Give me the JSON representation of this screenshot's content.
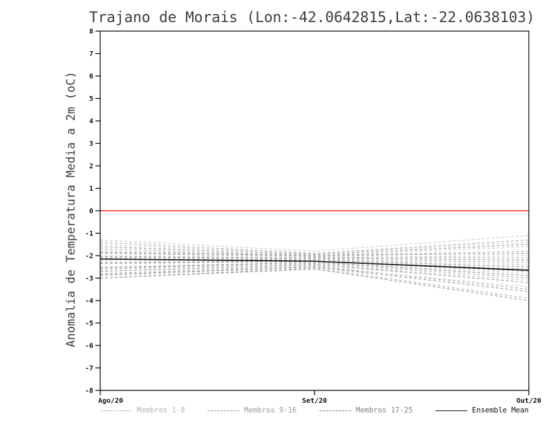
{
  "chart_data": {
    "type": "line",
    "title": "Trajano de Morais (Lon:-42.0642815,Lat:-22.0638103)",
    "ylabel": "Anomalia de Temperatura Media a 2m (oC)",
    "xlabel": "",
    "x_labels": [
      "Ago/20",
      "Set/20",
      "Out/20"
    ],
    "ylim": [
      -8,
      8
    ],
    "y_tick_step": 1,
    "grid": false,
    "zero_line_color": "#ff2a2a",
    "axis_color": "#000000",
    "groups": [
      {
        "name": "Membros 1-8",
        "color": "#c8c8c8",
        "dash": true,
        "members": [
          [
            -1.3,
            -1.8,
            -1.1
          ],
          [
            -1.5,
            -1.9,
            -1.4
          ],
          [
            -1.8,
            -2.0,
            -1.6
          ],
          [
            -2.0,
            -2.1,
            -2.0
          ],
          [
            -2.2,
            -2.2,
            -2.4
          ],
          [
            -2.5,
            -2.3,
            -2.8
          ],
          [
            -2.7,
            -2.4,
            -3.1
          ],
          [
            -2.9,
            -2.5,
            -3.4
          ]
        ]
      },
      {
        "name": "Membros 9-16",
        "color": "#ababab",
        "dash": true,
        "members": [
          [
            -1.4,
            -1.9,
            -1.3
          ],
          [
            -1.7,
            -2.0,
            -1.8
          ],
          [
            -1.9,
            -2.05,
            -2.1
          ],
          [
            -2.1,
            -2.15,
            -2.3
          ],
          [
            -2.3,
            -2.25,
            -2.6
          ],
          [
            -2.6,
            -2.35,
            -3.0
          ],
          [
            -2.8,
            -2.45,
            -3.5
          ],
          [
            -3.0,
            -2.55,
            -3.9
          ]
        ]
      },
      {
        "name": "Membros 17-25",
        "color": "#909090",
        "dash": true,
        "members": [
          [
            -1.6,
            -1.95,
            -1.5
          ],
          [
            -1.85,
            -2.0,
            -1.9
          ],
          [
            -2.05,
            -2.1,
            -2.2
          ],
          [
            -2.15,
            -2.2,
            -2.5
          ],
          [
            -2.35,
            -2.25,
            -2.7
          ],
          [
            -2.55,
            -2.3,
            -2.9
          ],
          [
            -2.7,
            -2.4,
            -3.2
          ],
          [
            -2.85,
            -2.5,
            -3.6
          ],
          [
            -3.0,
            -2.6,
            -4.0
          ]
        ]
      }
    ],
    "mean": {
      "name": "Ensemble Mean",
      "color": "#111111",
      "values": [
        -2.15,
        -2.25,
        -2.65
      ]
    },
    "legend": [
      {
        "label": "Membros 1-8",
        "color": "#b4b4b4",
        "dash": true
      },
      {
        "label": "Membros 9-16",
        "color": "#9a9a9a",
        "dash": true
      },
      {
        "label": "Membros 17-25",
        "color": "#7f7f7f",
        "dash": true
      },
      {
        "label": "Ensemble Mean",
        "color": "#111111",
        "dash": false
      }
    ]
  }
}
